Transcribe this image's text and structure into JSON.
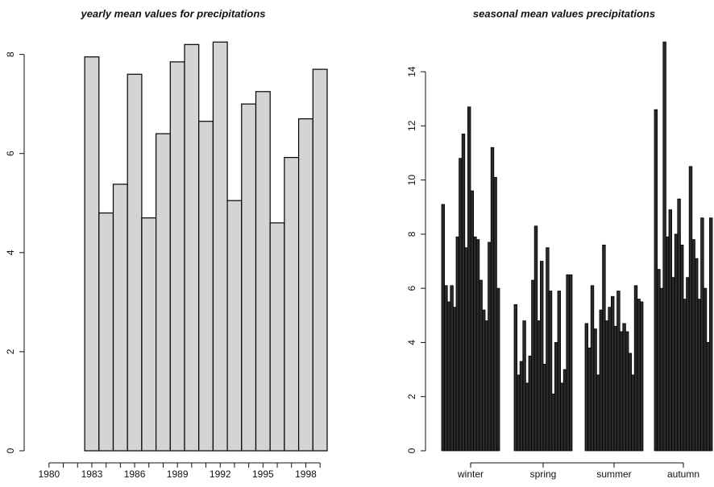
{
  "chart_data": [
    {
      "type": "bar",
      "title": "yearly mean values for precipitations",
      "categories": [
        "1980",
        null,
        null,
        "1983",
        null,
        null,
        "1986",
        null,
        null,
        "1989",
        null,
        null,
        "1992",
        null,
        null,
        "1995",
        null,
        null,
        "1998",
        null
      ],
      "values": [
        0,
        0,
        0,
        7.95,
        4.8,
        5.38,
        7.6,
        4.7,
        6.4,
        7.85,
        8.2,
        6.65,
        8.25,
        5.05,
        7.0,
        7.25,
        4.6,
        5.92,
        6.7,
        7.7
      ],
      "color": "#d4d4d4",
      "ylim": [
        0,
        8.4
      ],
      "yticks": [
        0,
        2,
        4,
        6,
        8
      ]
    },
    {
      "type": "grouped-bar",
      "title": "seasonal mean values precipitations",
      "categories": [
        "winter",
        "spring",
        "summer",
        "autumn"
      ],
      "values": [
        [
          9.1,
          6.1,
          5.5,
          6.1,
          5.3,
          7.9,
          10.8,
          11.7,
          7.5,
          12.7,
          9.6,
          7.9,
          7.8,
          6.3,
          5.2,
          4.8,
          7.7,
          11.2,
          10.1,
          6.0
        ],
        [
          5.4,
          2.8,
          3.3,
          4.8,
          2.5,
          3.5,
          6.3,
          8.3,
          4.8,
          7.0,
          3.2,
          7.5,
          5.9,
          2.1,
          4.0,
          5.9,
          2.5,
          3.0,
          6.5,
          6.5
        ],
        [
          4.7,
          3.8,
          6.1,
          4.5,
          2.8,
          5.2,
          7.6,
          4.8,
          5.3,
          5.7,
          4.6,
          5.9,
          4.4,
          4.7,
          4.4,
          3.6,
          2.8,
          6.1,
          5.6,
          5.5
        ],
        [
          12.6,
          6.7,
          6.0,
          15.1,
          7.9,
          8.9,
          6.4,
          8.0,
          9.3,
          7.6,
          5.6,
          6.4,
          10.5,
          7.8,
          7.1,
          5.6,
          8.6,
          6.0,
          4.0,
          8.6
        ]
      ],
      "color": "#2a2a2a",
      "ylim": [
        0,
        15.4
      ],
      "yticks": [
        0,
        2,
        4,
        6,
        8,
        10,
        12,
        14
      ]
    }
  ]
}
